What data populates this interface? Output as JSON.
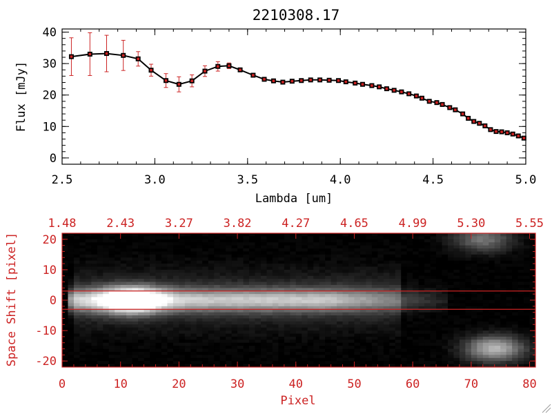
{
  "title": "2210308.17",
  "chart_data": [
    {
      "type": "line",
      "title": "2210308.17",
      "xlabel": "Lambda [um]",
      "ylabel": "Flux [mJy]",
      "xlim": [
        2.5,
        5.0
      ],
      "ylim": [
        -2,
        41
      ],
      "xticks": [
        "2.5",
        "3.0",
        "3.5",
        "4.0",
        "4.5",
        "5.0"
      ],
      "yticks": [
        "0",
        "10",
        "20",
        "30",
        "40"
      ],
      "grid": false,
      "colors": {
        "line": "#000000",
        "marker": "#cc2222",
        "errorbar": "#cc2222"
      },
      "x": [
        2.55,
        2.65,
        2.74,
        2.83,
        2.91,
        2.98,
        3.06,
        3.13,
        3.2,
        3.27,
        3.34,
        3.4,
        3.46,
        3.53,
        3.59,
        3.64,
        3.69,
        3.74,
        3.79,
        3.84,
        3.89,
        3.94,
        3.99,
        4.03,
        4.08,
        4.12,
        4.17,
        4.21,
        4.25,
        4.29,
        4.33,
        4.37,
        4.41,
        4.44,
        4.48,
        4.52,
        4.55,
        4.59,
        4.62,
        4.66,
        4.69,
        4.72,
        4.75,
        4.78,
        4.81,
        4.84,
        4.87,
        4.9,
        4.93,
        4.96,
        4.99
      ],
      "y": [
        32.2,
        33.0,
        33.2,
        32.6,
        31.5,
        27.9,
        24.6,
        23.4,
        24.5,
        27.6,
        29.1,
        29.3,
        28.0,
        26.3,
        25.0,
        24.5,
        24.1,
        24.4,
        24.6,
        24.8,
        24.8,
        24.7,
        24.6,
        24.2,
        23.8,
        23.4,
        23.0,
        22.6,
        22.0,
        21.5,
        21.0,
        20.4,
        19.7,
        19.0,
        18.0,
        17.6,
        17.0,
        16.0,
        15.3,
        14.0,
        12.6,
        11.6,
        11.0,
        10.2,
        9.0,
        8.4,
        8.3,
        8.0,
        7.6,
        7.0,
        6.3
      ],
      "yerr": [
        6.0,
        6.8,
        5.8,
        4.8,
        2.3,
        1.9,
        2.2,
        2.4,
        1.9,
        1.7,
        1.5,
        0.9,
        0.6,
        0.5,
        0.4,
        0.4,
        0.4,
        0.4,
        0.4,
        0.4,
        0.4,
        0.4,
        0.4,
        0.4,
        0.4,
        0.4,
        0.4,
        0.4,
        0.4,
        0.4,
        0.4,
        0.4,
        0.4,
        0.4,
        0.4,
        0.4,
        0.4,
        0.4,
        0.4,
        0.4,
        0.4,
        0.4,
        0.4,
        0.4,
        0.4,
        0.4,
        0.4,
        0.4,
        0.4,
        0.4,
        0.4
      ]
    },
    {
      "type": "heatmap",
      "xlabel": "Pixel",
      "ylabel": "Space Shift [pixel]",
      "xlim": [
        0,
        81
      ],
      "ylim": [
        -22,
        22
      ],
      "xticks": [
        "0",
        "10",
        "20",
        "30",
        "40",
        "50",
        "60",
        "70",
        "80"
      ],
      "yticks": [
        "-20",
        "-10",
        "0",
        "10",
        "20"
      ],
      "top_xticks": [
        "1.48",
        "2.43",
        "3.27",
        "3.82",
        "4.27",
        "4.65",
        "4.99",
        "5.30",
        "5.55"
      ],
      "guide_lines_y": [
        3,
        -3
      ],
      "colors": {
        "axes": "#cc2222",
        "guide": "#cc2222",
        "background": "#000000"
      },
      "sources": [
        {
          "x": 12,
          "y": 0,
          "peak": 0.95
        },
        {
          "x": 74,
          "y": -16,
          "peak": 0.72
        },
        {
          "x": 72,
          "y": 20,
          "peak": 0.45
        }
      ]
    }
  ]
}
